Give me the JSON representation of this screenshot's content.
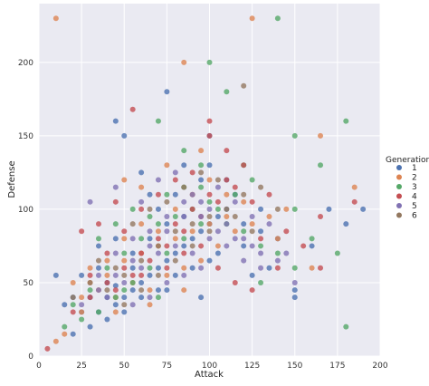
{
  "chart_data": {
    "type": "scatter",
    "title": "",
    "xlabel": "Attack",
    "ylabel": "Defense",
    "xlim": [
      0,
      200
    ],
    "ylim": [
      0,
      240
    ],
    "xticks": [
      0,
      25,
      50,
      75,
      100,
      125,
      150,
      175,
      200
    ],
    "yticks": [
      0,
      50,
      100,
      150,
      200
    ],
    "grid": true,
    "legend": {
      "title": "Generation",
      "placement": "right",
      "point_opacity": 0.8
    },
    "series": [
      {
        "name": "1",
        "color": "#4C72B0",
        "points": [
          [
            10,
            55
          ],
          [
            15,
            35
          ],
          [
            20,
            40
          ],
          [
            25,
            30
          ],
          [
            30,
            40
          ],
          [
            35,
            30
          ],
          [
            40,
            40
          ],
          [
            45,
            35
          ],
          [
            50,
            40
          ],
          [
            55,
            45
          ],
          [
            60,
            50
          ],
          [
            65,
            55
          ],
          [
            70,
            60
          ],
          [
            75,
            65
          ],
          [
            80,
            70
          ],
          [
            85,
            75
          ],
          [
            90,
            80
          ],
          [
            95,
            85
          ],
          [
            100,
            90
          ],
          [
            105,
            95
          ],
          [
            110,
            100
          ],
          [
            45,
            160
          ],
          [
            50,
            150
          ],
          [
            75,
            180
          ],
          [
            85,
            130
          ],
          [
            95,
            120
          ],
          [
            100,
            130
          ],
          [
            115,
            110
          ],
          [
            130,
            100
          ],
          [
            150,
            40
          ],
          [
            190,
            100
          ],
          [
            180,
            90
          ],
          [
            60,
            40
          ],
          [
            70,
            45
          ],
          [
            80,
            55
          ],
          [
            90,
            60
          ],
          [
            100,
            65
          ],
          [
            120,
            75
          ],
          [
            55,
            70
          ],
          [
            65,
            80
          ],
          [
            75,
            90
          ],
          [
            85,
            95
          ],
          [
            35,
            60
          ],
          [
            40,
            50
          ],
          [
            45,
            48
          ],
          [
            55,
            60
          ],
          [
            70,
            100
          ],
          [
            80,
            110
          ],
          [
            60,
            125
          ],
          [
            65,
            110
          ],
          [
            100,
            150
          ],
          [
            110,
            120
          ],
          [
            120,
            90
          ],
          [
            130,
            85
          ],
          [
            140,
            80
          ],
          [
            50,
            30
          ],
          [
            40,
            25
          ],
          [
            30,
            20
          ],
          [
            20,
            15
          ],
          [
            25,
            55
          ],
          [
            35,
            75
          ],
          [
            45,
            80
          ],
          [
            75,
            45
          ],
          [
            95,
            40
          ],
          [
            105,
            70
          ],
          [
            125,
            55
          ],
          [
            135,
            60
          ],
          [
            150,
            45
          ],
          [
            160,
            75
          ],
          [
            170,
            100
          ]
        ]
      },
      {
        "name": "2",
        "color": "#DD8452",
        "points": [
          [
            10,
            230
          ],
          [
            85,
            200
          ],
          [
            125,
            230
          ],
          [
            165,
            150
          ],
          [
            185,
            115
          ],
          [
            10,
            10
          ],
          [
            15,
            15
          ],
          [
            25,
            30
          ],
          [
            20,
            50
          ],
          [
            30,
            60
          ],
          [
            40,
            55
          ],
          [
            50,
            65
          ],
          [
            60,
            70
          ],
          [
            70,
            75
          ],
          [
            80,
            80
          ],
          [
            90,
            85
          ],
          [
            100,
            90
          ],
          [
            110,
            95
          ],
          [
            35,
            45
          ],
          [
            45,
            40
          ],
          [
            55,
            50
          ],
          [
            65,
            45
          ],
          [
            75,
            55
          ],
          [
            85,
            60
          ],
          [
            95,
            65
          ],
          [
            105,
            75
          ],
          [
            115,
            85
          ],
          [
            125,
            90
          ],
          [
            135,
            95
          ],
          [
            145,
            100
          ],
          [
            30,
            50
          ],
          [
            40,
            65
          ],
          [
            50,
            80
          ],
          [
            60,
            90
          ],
          [
            70,
            85
          ],
          [
            80,
            100
          ],
          [
            90,
            110
          ],
          [
            100,
            120
          ],
          [
            120,
            105
          ],
          [
            140,
            80
          ],
          [
            160,
            60
          ],
          [
            50,
            120
          ],
          [
            60,
            115
          ],
          [
            75,
            130
          ],
          [
            95,
            140
          ],
          [
            110,
            110
          ],
          [
            25,
            40
          ],
          [
            45,
            30
          ],
          [
            65,
            35
          ],
          [
            85,
            45
          ]
        ]
      },
      {
        "name": "3",
        "color": "#55A868",
        "points": [
          [
            15,
            20
          ],
          [
            25,
            25
          ],
          [
            35,
            30
          ],
          [
            45,
            40
          ],
          [
            55,
            50
          ],
          [
            65,
            60
          ],
          [
            75,
            70
          ],
          [
            85,
            80
          ],
          [
            95,
            90
          ],
          [
            105,
            100
          ],
          [
            115,
            110
          ],
          [
            125,
            120
          ],
          [
            100,
            200
          ],
          [
            110,
            180
          ],
          [
            140,
            230
          ],
          [
            180,
            160
          ],
          [
            150,
            150
          ],
          [
            165,
            130
          ],
          [
            180,
            20
          ],
          [
            70,
            160
          ],
          [
            85,
            140
          ],
          [
            95,
            130
          ],
          [
            120,
            130
          ],
          [
            30,
            45
          ],
          [
            40,
            60
          ],
          [
            50,
            70
          ],
          [
            60,
            80
          ],
          [
            70,
            90
          ],
          [
            80,
            95
          ],
          [
            90,
            100
          ],
          [
            100,
            105
          ],
          [
            110,
            90
          ],
          [
            120,
            85
          ],
          [
            130,
            75
          ],
          [
            140,
            70
          ],
          [
            150,
            60
          ],
          [
            160,
            80
          ],
          [
            35,
            80
          ],
          [
            45,
            90
          ],
          [
            55,
            100
          ],
          [
            65,
            95
          ],
          [
            75,
            110
          ],
          [
            85,
            115
          ],
          [
            95,
            115
          ],
          [
            130,
            50
          ],
          [
            150,
            100
          ],
          [
            175,
            70
          ],
          [
            20,
            35
          ],
          [
            50,
            45
          ],
          [
            70,
            40
          ]
        ]
      },
      {
        "name": "4",
        "color": "#C44E52",
        "points": [
          [
            5,
            5
          ],
          [
            20,
            30
          ],
          [
            30,
            40
          ],
          [
            40,
            50
          ],
          [
            50,
            60
          ],
          [
            60,
            70
          ],
          [
            70,
            80
          ],
          [
            80,
            90
          ],
          [
            90,
            100
          ],
          [
            100,
            110
          ],
          [
            110,
            120
          ],
          [
            120,
            130
          ],
          [
            55,
            168
          ],
          [
            100,
            150
          ],
          [
            165,
            95
          ],
          [
            185,
            105
          ],
          [
            165,
            60
          ],
          [
            100,
            160
          ],
          [
            45,
            45
          ],
          [
            55,
            55
          ],
          [
            65,
            65
          ],
          [
            75,
            75
          ],
          [
            85,
            85
          ],
          [
            95,
            95
          ],
          [
            105,
            105
          ],
          [
            115,
            115
          ],
          [
            125,
            105
          ],
          [
            135,
            110
          ],
          [
            145,
            85
          ],
          [
            155,
            75
          ],
          [
            30,
            55
          ],
          [
            40,
            70
          ],
          [
            50,
            85
          ],
          [
            60,
            100
          ],
          [
            70,
            110
          ],
          [
            80,
            120
          ],
          [
            90,
            125
          ],
          [
            110,
            140
          ],
          [
            130,
            80
          ],
          [
            140,
            60
          ],
          [
            25,
            85
          ],
          [
            35,
            90
          ],
          [
            45,
            105
          ],
          [
            60,
            55
          ],
          [
            75,
            60
          ],
          [
            85,
            70
          ],
          [
            95,
            75
          ],
          [
            105,
            60
          ],
          [
            115,
            50
          ],
          [
            125,
            45
          ]
        ]
      },
      {
        "name": "5",
        "color": "#8172B3",
        "points": [
          [
            25,
            35
          ],
          [
            35,
            45
          ],
          [
            45,
            55
          ],
          [
            55,
            65
          ],
          [
            65,
            75
          ],
          [
            75,
            85
          ],
          [
            85,
            95
          ],
          [
            95,
            105
          ],
          [
            105,
            115
          ],
          [
            115,
            105
          ],
          [
            125,
            95
          ],
          [
            135,
            90
          ],
          [
            145,
            70
          ],
          [
            30,
            105
          ],
          [
            45,
            115
          ],
          [
            60,
            105
          ],
          [
            70,
            120
          ],
          [
            80,
            125
          ],
          [
            90,
            110
          ],
          [
            100,
            100
          ],
          [
            110,
            90
          ],
          [
            120,
            80
          ],
          [
            130,
            70
          ],
          [
            140,
            65
          ],
          [
            150,
            50
          ],
          [
            40,
            40
          ],
          [
            50,
            50
          ],
          [
            60,
            60
          ],
          [
            70,
            70
          ],
          [
            80,
            75
          ],
          [
            90,
            70
          ],
          [
            100,
            80
          ],
          [
            110,
            75
          ],
          [
            120,
            65
          ],
          [
            130,
            60
          ],
          [
            35,
            55
          ],
          [
            45,
            70
          ],
          [
            55,
            80
          ],
          [
            65,
            85
          ],
          [
            75,
            95
          ],
          [
            85,
            105
          ],
          [
            95,
            95
          ],
          [
            105,
            85
          ],
          [
            115,
            80
          ],
          [
            125,
            75
          ],
          [
            55,
            35
          ],
          [
            65,
            40
          ],
          [
            75,
            50
          ],
          [
            85,
            55
          ],
          [
            95,
            60
          ]
        ]
      },
      {
        "name": "6",
        "color": "#937860",
        "points": [
          [
            120,
            184
          ],
          [
            20,
            40
          ],
          [
            30,
            50
          ],
          [
            40,
            45
          ],
          [
            50,
            55
          ],
          [
            60,
            65
          ],
          [
            70,
            75
          ],
          [
            80,
            85
          ],
          [
            90,
            90
          ],
          [
            100,
            95
          ],
          [
            110,
            100
          ],
          [
            120,
            110
          ],
          [
            130,
            115
          ],
          [
            140,
            100
          ],
          [
            50,
            35
          ],
          [
            60,
            45
          ],
          [
            70,
            55
          ],
          [
            80,
            65
          ],
          [
            90,
            75
          ],
          [
            100,
            85
          ],
          [
            55,
            90
          ],
          [
            65,
            100
          ],
          [
            75,
            105
          ],
          [
            85,
            115
          ],
          [
            95,
            125
          ],
          [
            105,
            120
          ],
          [
            115,
            95
          ],
          [
            125,
            85
          ],
          [
            45,
            60
          ],
          [
            35,
            65
          ]
        ]
      }
    ]
  }
}
